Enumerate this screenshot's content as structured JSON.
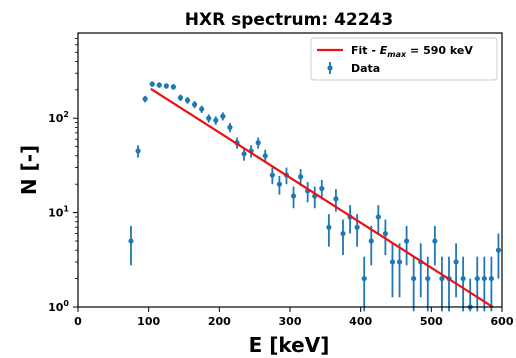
{
  "chart_data": {
    "type": "scatter",
    "title": "HXR spectrum: 42243",
    "xlabel": "E [keV]",
    "ylabel": "N [-]",
    "xlim": [
      0,
      600
    ],
    "ylim": [
      1,
      800
    ],
    "y_scale": "log",
    "grid": false,
    "legend_position": "top-right",
    "x_ticks": [
      0,
      100,
      200,
      300,
      400,
      500,
      600
    ],
    "y_ticks": [
      {
        "value": 1,
        "base": "10",
        "exp": "0"
      },
      {
        "value": 10,
        "base": "10",
        "exp": "1"
      },
      {
        "value": 100,
        "base": "10",
        "exp": "2"
      }
    ],
    "legend": {
      "fit_label": "Fit - ",
      "fit_label_var": "E",
      "fit_label_sub": "max",
      "fit_label_rest": " = 590 keV",
      "data_label": "Data"
    },
    "colors": {
      "data": "#1f77b4",
      "fit": "#ee1111"
    },
    "series": [
      {
        "kind": "errorbar",
        "x": [
          75,
          85,
          95,
          105,
          115,
          125,
          135,
          145,
          155,
          165,
          175,
          185,
          195,
          205,
          215,
          225,
          235,
          245,
          255,
          265,
          275,
          285,
          295,
          305,
          315,
          325,
          335,
          345,
          355,
          365,
          375,
          385,
          395,
          405,
          415,
          425,
          435,
          445,
          455,
          465,
          475,
          485,
          495,
          505,
          515,
          525,
          535,
          545,
          555,
          565,
          575,
          585,
          595
        ],
        "y": [
          5,
          45,
          160,
          230,
          225,
          220,
          215,
          165,
          155,
          140,
          125,
          100,
          95,
          105,
          80,
          55,
          42,
          45,
          55,
          40,
          25,
          20,
          25,
          15,
          24,
          17,
          15,
          18,
          7,
          14,
          6,
          9,
          7,
          2,
          5,
          9,
          6,
          3,
          3,
          5,
          2,
          3,
          2,
          5,
          2,
          2,
          3,
          2,
          1,
          2,
          2,
          2,
          4
        ]
      },
      {
        "kind": "line",
        "x": [
          103,
          587
        ],
        "y": [
          205,
          1
        ]
      }
    ]
  }
}
